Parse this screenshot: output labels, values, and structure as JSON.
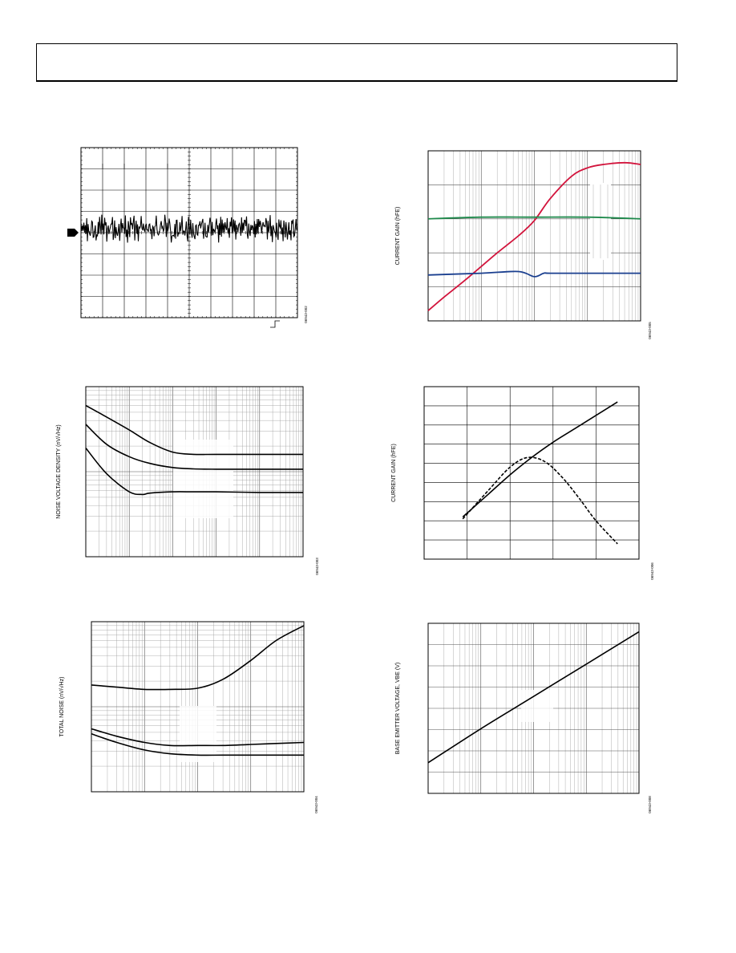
{
  "page": {
    "header_box": true
  },
  "figures": [
    {
      "id": "noise-scope",
      "figure_number": "06943-002",
      "ylabel": ""
    },
    {
      "id": "current-gain-vs-collector-current",
      "figure_number": "06943-005",
      "ylabel": "CURRENT GAIN (hFE)"
    },
    {
      "id": "noise-voltage-density",
      "figure_number": "06943-003",
      "ylabel": "NOISE VOLTAGE DENSITY (nV/√Hz)"
    },
    {
      "id": "current-gain-vs-temperature",
      "figure_number": "06943-006",
      "ylabel": "CURRENT GAIN (hFE)"
    },
    {
      "id": "total-noise",
      "figure_number": "06943-004",
      "ylabel": "TOTAL NOISE (nV/√Hz)"
    },
    {
      "id": "base-emitter-voltage",
      "figure_number": "06943-008",
      "ylabel": "BASE EMITTER VOLTAGE, VBE (V)"
    }
  ],
  "chart_data": [
    {
      "type": "line",
      "title": "",
      "xlabel": "",
      "ylabel": "",
      "grid": true,
      "grid_divisions": {
        "x": 10,
        "y": 8
      },
      "series": [
        {
          "values": [
            0.12,
            -0.18,
            0.25,
            -0.05,
            0.31,
            -0.22,
            0.08,
            -0.15,
            0.27,
            -0.3,
            0.1,
            0.22,
            -0.12,
            0.05,
            -0.26,
            0.18,
            0.33,
            -0.08,
            -0.2,
            0.14,
            0.02,
            -0.28,
            0.24,
            -0.1,
            0.16,
            -0.33,
            0.2,
            0.07,
            -0.16,
            0.29,
            -0.04,
            -0.24,
            0.12,
            0.26,
            -0.19,
            0.09,
            -0.31,
            0.15,
            0.03,
            -0.13,
            0.3,
            -0.21,
            0.11,
            -0.06,
            0.23,
            -0.27,
            0.17,
            0.04,
            -0.23,
            0.28,
            -0.11,
            -0.17,
            0.21,
            0.06,
            -0.29,
            0.13,
            0.25,
            -0.09,
            -0.25,
            0.19,
            0.01,
            -0.14,
            0.32,
            -0.2,
            0.08,
            -0.32,
            0.18,
            0.1,
            -0.07,
            0.27,
            -0.24,
            0.14,
            -0.02,
            -0.18,
            0.22,
            -0.28,
            0.09,
            0.2,
            -0.12,
            0.26,
            -0.3,
            0.05,
            0.16,
            -0.21,
            0.3,
            -0.05,
            -0.26,
            0.12,
            0.24,
            -0.15,
            0.07,
            -0.33,
            0.19,
            -0.03,
            0.28,
            -0.19,
            0.11,
            -0.1,
            0.23,
            -0.25,
            0.15
          ]
        }
      ],
      "trigger_marker": true,
      "colors": {
        "trace": "#000000",
        "grid": "#000000"
      }
    },
    {
      "type": "line",
      "title": "",
      "xlabel": "",
      "ylabel": "CURRENT GAIN (hFE)",
      "xscale": "log",
      "xlim": [
        1e-06,
        0.01
      ],
      "ylim": [
        0,
        1
      ],
      "grid": true,
      "series": [
        {
          "name": "",
          "color": "#d2143c",
          "x": [
            1e-06,
            2e-06,
            5e-06,
            1e-05,
            2e-05,
            5e-05,
            0.0001,
            0.0002,
            0.0005,
            0.001,
            0.002,
            0.005,
            0.01
          ],
          "values": [
            0.06,
            0.14,
            0.24,
            0.32,
            0.4,
            0.5,
            0.59,
            0.72,
            0.85,
            0.9,
            0.92,
            0.93,
            0.92
          ]
        },
        {
          "name": "",
          "color": "#1f8a4c",
          "x": [
            1e-06,
            1e-05,
            0.0001,
            0.001,
            0.01
          ],
          "values": [
            0.6,
            0.61,
            0.61,
            0.61,
            0.6
          ]
        },
        {
          "name": "",
          "color": "#1a3f8f",
          "x": [
            1e-06,
            1e-05,
            5e-05,
            0.0001,
            0.00015,
            0.0002,
            0.001,
            0.01
          ],
          "values": [
            0.27,
            0.28,
            0.29,
            0.26,
            0.28,
            0.28,
            0.28,
            0.28
          ]
        }
      ]
    },
    {
      "type": "line",
      "title": "",
      "xlabel": "",
      "ylabel": "NOISE VOLTAGE DENSITY (nV/√Hz)",
      "xscale": "log",
      "yscale": "log",
      "xlim": [
        1,
        100000
      ],
      "ylim": [
        0.1,
        10
      ],
      "grid": true,
      "series": [
        {
          "name": "",
          "color": "#000000",
          "x": [
            1,
            3,
            10,
            30,
            100,
            300,
            1000,
            10000,
            100000
          ],
          "values": [
            6.0,
            4.4,
            3.1,
            2.2,
            1.7,
            1.6,
            1.6,
            1.6,
            1.6
          ]
        },
        {
          "name": "",
          "color": "#000000",
          "x": [
            1,
            3,
            10,
            30,
            100,
            300,
            1000,
            10000,
            100000
          ],
          "values": [
            3.6,
            2.1,
            1.5,
            1.25,
            1.12,
            1.08,
            1.07,
            1.07,
            1.07
          ]
        },
        {
          "name": "",
          "color": "#000000",
          "x": [
            1,
            3,
            10,
            20,
            30,
            100,
            300,
            1000,
            10000,
            100000
          ],
          "values": [
            1.9,
            0.95,
            0.58,
            0.54,
            0.56,
            0.58,
            0.58,
            0.58,
            0.57,
            0.57
          ]
        }
      ]
    },
    {
      "type": "line",
      "title": "",
      "xlabel": "",
      "ylabel": "CURRENT GAIN (hFE)",
      "xlim": [
        0,
        5
      ],
      "ylim": [
        0,
        9
      ],
      "grid": true,
      "grid_divisions": {
        "x": 5,
        "y": 9
      },
      "series": [
        {
          "name": "",
          "color": "#000000",
          "style": "solid",
          "x": [
            0.9,
            1.5,
            2.0,
            2.5,
            3.0,
            3.5,
            4.0,
            4.5
          ],
          "values": [
            2.2,
            3.4,
            4.4,
            5.3,
            6.1,
            6.8,
            7.5,
            8.2
          ]
        },
        {
          "name": "",
          "color": "#000000",
          "style": "dashed",
          "x": [
            0.9,
            1.5,
            2.0,
            2.4,
            2.8,
            3.2,
            3.6,
            4.0,
            4.5
          ],
          "values": [
            2.1,
            3.6,
            4.8,
            5.3,
            5.1,
            4.3,
            3.2,
            2.0,
            0.8
          ]
        }
      ]
    },
    {
      "type": "line",
      "title": "",
      "xlabel": "",
      "ylabel": "TOTAL NOISE (nV/√Hz)",
      "xscale": "log",
      "yscale": "log",
      "xlim": [
        10,
        100000
      ],
      "ylim": [
        0.1,
        10
      ],
      "grid": true,
      "series": [
        {
          "name": "",
          "color": "#000000",
          "x": [
            10,
            30,
            100,
            300,
            1000,
            3000,
            10000,
            30000,
            100000
          ],
          "values": [
            1.8,
            1.7,
            1.6,
            1.6,
            1.65,
            2.1,
            3.5,
            6.0,
            9.0
          ]
        },
        {
          "name": "",
          "color": "#000000",
          "x": [
            10,
            30,
            100,
            300,
            1000,
            3000,
            10000,
            30000,
            100000
          ],
          "values": [
            0.55,
            0.45,
            0.38,
            0.35,
            0.35,
            0.35,
            0.36,
            0.37,
            0.38
          ]
        },
        {
          "name": "",
          "color": "#000000",
          "x": [
            10,
            30,
            100,
            300,
            1000,
            3000,
            10000,
            30000,
            100000
          ],
          "values": [
            0.48,
            0.38,
            0.31,
            0.28,
            0.27,
            0.27,
            0.27,
            0.27,
            0.27
          ]
        }
      ]
    },
    {
      "type": "line",
      "title": "",
      "xlabel": "",
      "ylabel": "BASE EMITTER VOLTAGE, VBE (V)",
      "xscale": "log",
      "xlim": [
        1e-06,
        0.01
      ],
      "ylim": [
        0,
        1
      ],
      "grid": true,
      "series": [
        {
          "name": "",
          "color": "#000000",
          "x": [
            1e-06,
            1e-05,
            0.0001,
            0.001,
            0.01
          ],
          "values": [
            0.18,
            0.38,
            0.57,
            0.76,
            0.95
          ]
        }
      ]
    }
  ]
}
